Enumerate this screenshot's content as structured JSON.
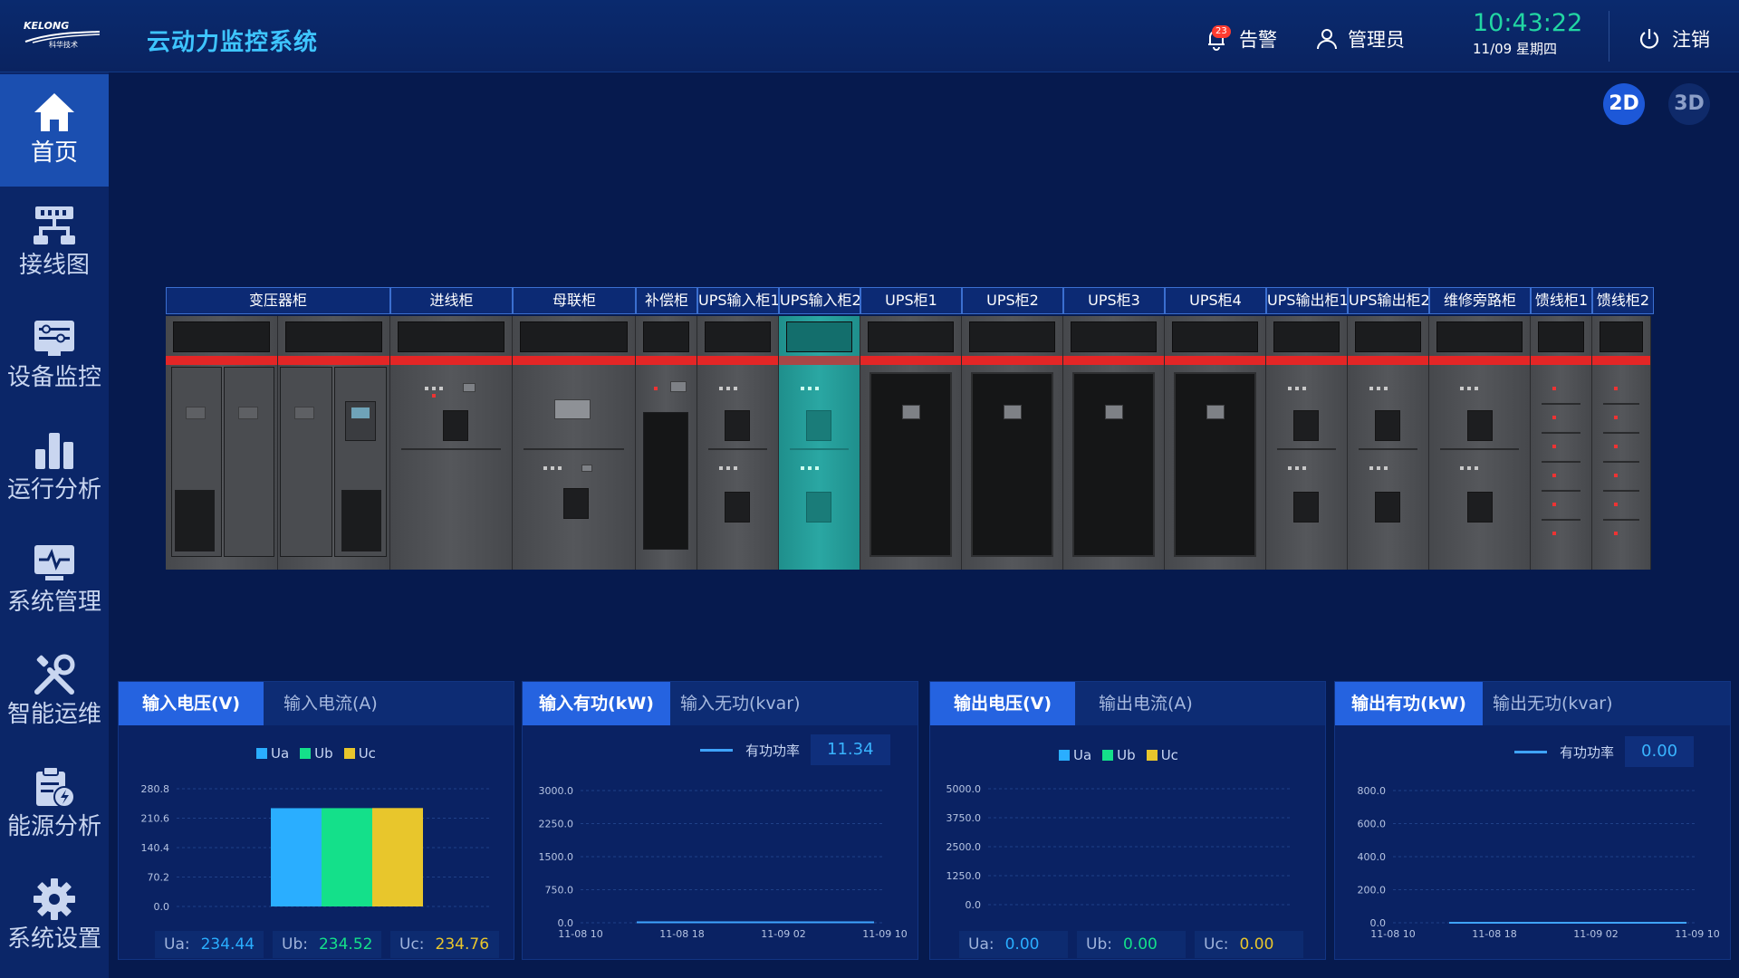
{
  "header": {
    "brand": "KELONG",
    "brand_sub": "科华技术",
    "title": "云动力监控系统",
    "alarm_count": "23",
    "alarm_label": "告警",
    "user_label": "管理员",
    "time": "10:43:22",
    "date": "11/09 星期四",
    "logout_label": "注销"
  },
  "sidebar": {
    "items": [
      {
        "label": "首页",
        "icon": "home-icon",
        "active": true
      },
      {
        "label": "接线图",
        "icon": "wiring-icon",
        "active": false
      },
      {
        "label": "设备监控",
        "icon": "device-monitor-icon",
        "active": false
      },
      {
        "label": "运行分析",
        "icon": "bar-chart-icon",
        "active": false
      },
      {
        "label": "系统管理",
        "icon": "monitor-pulse-icon",
        "active": false
      },
      {
        "label": "智能运维",
        "icon": "tools-icon",
        "active": false
      },
      {
        "label": "能源分析",
        "icon": "energy-clipboard-icon",
        "active": false
      },
      {
        "label": "系统设置",
        "icon": "gear-icon",
        "active": false
      }
    ]
  },
  "view_toggle": {
    "btn_2d": "2D",
    "btn_3d": "3D"
  },
  "cabinets": [
    {
      "label": "变压器柜"
    },
    {
      "label": "进线柜"
    },
    {
      "label": "母联柜"
    },
    {
      "label": "补偿柜"
    },
    {
      "label": "UPS输入柜1"
    },
    {
      "label": "UPS输入柜2"
    },
    {
      "label": "UPS柜1"
    },
    {
      "label": "UPS柜2"
    },
    {
      "label": "UPS柜3"
    },
    {
      "label": "UPS柜4"
    },
    {
      "label": "UPS输出柜1"
    },
    {
      "label": "UPS输出柜2"
    },
    {
      "label": "维修旁路柜"
    },
    {
      "label": "馈线柜1"
    },
    {
      "label": "馈线柜2"
    }
  ],
  "panels": {
    "p1": {
      "tab_active": "输入电压(V)",
      "tab_other": "输入电流(A)",
      "legend": [
        "Ua",
        "Ub",
        "Uc"
      ],
      "readouts": [
        {
          "k": "Ua:",
          "v": "234.44"
        },
        {
          "k": "Ub:",
          "v": "234.52"
        },
        {
          "k": "Uc:",
          "v": "234.76"
        }
      ]
    },
    "p2": {
      "tab_active": "输入有功(kW)",
      "tab_other": "输入无功(kvar)",
      "legend_label": "有功功率",
      "legend_value": "11.34"
    },
    "p3": {
      "tab_active": "输出电压(V)",
      "tab_other": "输出电流(A)",
      "legend": [
        "Ua",
        "Ub",
        "Uc"
      ],
      "readouts": [
        {
          "k": "Ua:",
          "v": "0.00"
        },
        {
          "k": "Ub:",
          "v": "0.00"
        },
        {
          "k": "Uc:",
          "v": "0.00"
        }
      ]
    },
    "p4": {
      "tab_active": "输出有功(kW)",
      "tab_other": "输出无功(kvar)",
      "legend_label": "有功功率",
      "legend_value": "0.00"
    }
  },
  "colors": {
    "ua": "#2aaeff",
    "ub": "#14e08a",
    "uc": "#e8c62c",
    "line": "#3fa4ff"
  },
  "chart_data": [
    {
      "type": "bar",
      "categories": [
        "Ua",
        "Ub",
        "Uc"
      ],
      "values": [
        234.44,
        234.52,
        234.76
      ],
      "yticks": [
        "0.0",
        "70.2",
        "140.4",
        "210.6",
        "280.8"
      ],
      "ylim": [
        0,
        280.8
      ]
    },
    {
      "type": "line",
      "series": [
        {
          "name": "有功功率",
          "values": [
            11.34,
            11.34,
            11.34,
            11.34,
            11.34,
            11.34,
            11.34,
            11.34,
            11.34,
            11.34
          ]
        }
      ],
      "xticks": [
        "11-08 10",
        "11-08 18",
        "11-09 02",
        "11-09 10"
      ],
      "yticks": [
        "0.0",
        "750.0",
        "1500.0",
        "2250.0",
        "3000.0"
      ],
      "ylim": [
        0,
        3000
      ]
    },
    {
      "type": "bar",
      "categories": [
        "Ua",
        "Ub",
        "Uc"
      ],
      "values": [
        0,
        0,
        0
      ],
      "yticks": [
        "0.0",
        "1250.0",
        "2500.0",
        "3750.0",
        "5000.0"
      ],
      "ylim": [
        0,
        5000
      ]
    },
    {
      "type": "line",
      "series": [
        {
          "name": "有功功率",
          "values": [
            0,
            0,
            0,
            0,
            0,
            0,
            0,
            0,
            0,
            0
          ]
        }
      ],
      "xticks": [
        "11-08 10",
        "11-08 18",
        "11-09 02",
        "11-09 10"
      ],
      "yticks": [
        "0.0",
        "200.0",
        "400.0",
        "600.0",
        "800.0"
      ],
      "ylim": [
        0,
        800
      ]
    }
  ]
}
